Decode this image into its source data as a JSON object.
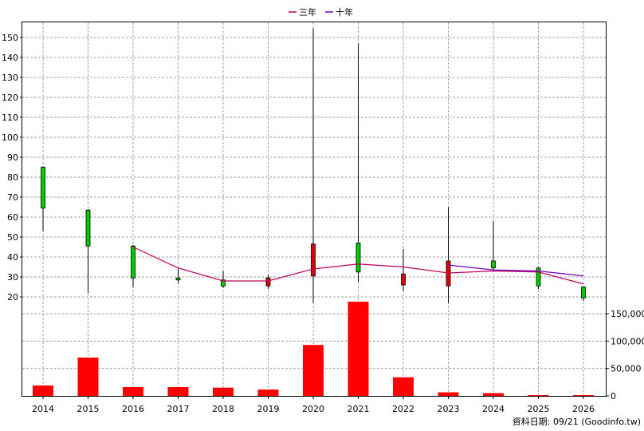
{
  "legend": {
    "three_year_label": "三年",
    "ten_year_label": "十年",
    "three_year_color": "#c0005a",
    "ten_year_color": "#6a00c8"
  },
  "footer": {
    "note": "資料日期: 09/21  (Goodinfo.tw)"
  },
  "colors": {
    "up": "#00cc00",
    "down": "#e00000",
    "volume": "#ff0000",
    "wick": "#000000",
    "grid": "#a0a0a0"
  },
  "chart_data": {
    "type": "candlestick+bar",
    "categories": [
      "2014",
      "2015",
      "2016",
      "2017",
      "2018",
      "2019",
      "2020",
      "2021",
      "2022",
      "2023",
      "2024",
      "2025",
      "2026"
    ],
    "price_axis": {
      "ylim": [
        16,
        156
      ],
      "ticks": [
        20,
        30,
        40,
        50,
        60,
        70,
        80,
        90,
        100,
        110,
        120,
        130,
        140,
        150
      ]
    },
    "volume_axis": {
      "ylim": [
        0,
        172000
      ],
      "ticks": [
        0,
        50000,
        100000,
        150000
      ],
      "tick_labels": [
        "0",
        "50,000",
        "100,000",
        "150,000"
      ]
    },
    "candles": [
      {
        "year": "2014",
        "open": 64.5,
        "close": 85.0,
        "high": 85.5,
        "low": 53.0
      },
      {
        "year": "2015",
        "open": 45.5,
        "close": 63.5,
        "high": 64.0,
        "low": 22.0
      },
      {
        "year": "2016",
        "open": 29.5,
        "close": 45.5,
        "high": 46.0,
        "low": 25.0
      },
      {
        "year": "2017",
        "open": 28.5,
        "close": 29.5,
        "high": 34.0,
        "low": 26.5
      },
      {
        "year": "2018",
        "open": 25.5,
        "close": 28.5,
        "high": 33.0,
        "low": 24.5
      },
      {
        "year": "2019",
        "open": 29.5,
        "close": 25.5,
        "high": 31.0,
        "low": 24.0
      },
      {
        "year": "2020",
        "open": 46.5,
        "close": 30.5,
        "high": 154.5,
        "low": 17.0
      },
      {
        "year": "2021",
        "open": 32.5,
        "close": 47.0,
        "high": 147.0,
        "low": 27.5
      },
      {
        "year": "2022",
        "open": 31.5,
        "close": 26.0,
        "high": 44.0,
        "low": 23.0
      },
      {
        "year": "2023",
        "open": 38.0,
        "close": 25.5,
        "high": 65.0,
        "low": 17.0
      },
      {
        "year": "2024",
        "open": 34.5,
        "close": 38.0,
        "high": 58.0,
        "low": 33.5
      },
      {
        "year": "2025",
        "open": 25.5,
        "close": 34.5,
        "high": 35.0,
        "low": 24.0
      },
      {
        "year": "2026",
        "open": 19.5,
        "close": 25.0,
        "high": 25.0,
        "low": 18.0
      }
    ],
    "series": [
      {
        "name": "三年",
        "values": [
          null,
          null,
          45.0,
          34.5,
          28.0,
          28.0,
          34.0,
          36.5,
          35.0,
          32.0,
          33.0,
          32.5,
          26.5
        ]
      },
      {
        "name": "十年",
        "values": [
          null,
          null,
          null,
          null,
          null,
          null,
          null,
          null,
          null,
          36.0,
          33.5,
          33.0,
          30.5
        ]
      }
    ],
    "volume": [
      19000,
      70000,
      16000,
      16000,
      15000,
      11500,
      93000,
      172000,
      34000,
      6500,
      5000,
      900,
      500
    ]
  }
}
